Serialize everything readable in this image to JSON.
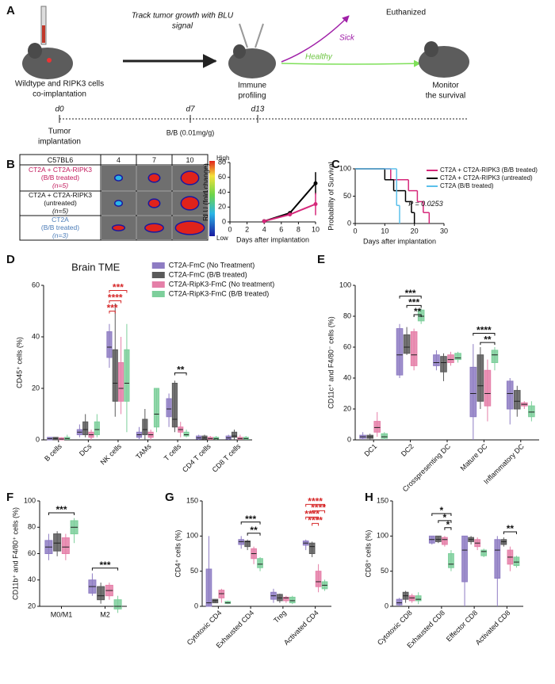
{
  "panel_labels": [
    "A",
    "B",
    "C",
    "D",
    "E",
    "F",
    "G",
    "H"
  ],
  "schematic": {
    "step1": "Wildtype and RIPK3 cells",
    "step1b": "co-implantation",
    "track": "Track tumor growth with BLU",
    "trackb": "signal",
    "profiling": "Immune",
    "profilingb": "profiling",
    "euthanized": "Euthanized",
    "sick": "Sick",
    "healthy": "Healthy",
    "monitor": "Monitor",
    "monitorb": "the survival"
  },
  "timeline": {
    "d0": "d0",
    "d7": "d7",
    "d13": "d13",
    "event0": "Tumor",
    "event0b": "implantation",
    "event7": "B/B (0.01mg/g)"
  },
  "imaging_table": {
    "header": [
      "C57BL6",
      "4",
      "7",
      "10"
    ],
    "rows": [
      [
        "CT2A + CT2A-RIPK3",
        "(B/B treated)",
        "(n=5)"
      ],
      [
        "CT2A + CT2A-RIPK3",
        "(untreated)",
        "(n=5)"
      ],
      [
        "CT2A",
        "(B/B treated)",
        "(n=3)"
      ]
    ],
    "row_colors": [
      "#c2185b",
      "#111111",
      "#4a7bb7"
    ],
    "scale_high": "High",
    "scale_low": "Low"
  },
  "chart_data": [
    {
      "type": "line",
      "xlabel": "Days after implantation",
      "ylabel": "RLU (fold change)",
      "xlim": [
        0,
        10
      ],
      "xticks": [
        0,
        2,
        4,
        6,
        8,
        10
      ],
      "ylim": [
        0,
        80
      ],
      "yticks": [
        0,
        20,
        40,
        60,
        80
      ],
      "series": [
        {
          "color": "#000000",
          "x": [
            4,
            7,
            10
          ],
          "values": [
            1,
            12,
            52
          ],
          "errors": [
            0,
            1,
            15
          ]
        },
        {
          "color": "#d6287a",
          "x": [
            4,
            7,
            10
          ],
          "values": [
            1,
            10,
            24
          ],
          "errors": [
            0,
            1,
            15
          ]
        }
      ]
    },
    {
      "type": "survival",
      "xlabel": "Days after implantation",
      "ylabel": "Probability of Survival",
      "xlim": [
        0,
        30
      ],
      "xticks": [
        0,
        10,
        20,
        30
      ],
      "ylim": [
        0,
        100
      ],
      "yticks": [
        0,
        50,
        100
      ],
      "legend": "upper right",
      "p_label": "P = 0.0253",
      "series": [
        {
          "name": "CT2A + CT2A-RIPK3 (B/B treated)",
          "color": "#d6287a",
          "x": [
            0,
            12,
            18,
            21,
            23,
            25
          ],
          "values": [
            100,
            80,
            60,
            40,
            20,
            0
          ]
        },
        {
          "name": "CT2A + CT2A-RIPK3 (untreated)",
          "color": "#000000",
          "x": [
            0,
            10,
            13,
            17,
            19,
            20
          ],
          "values": [
            100,
            80,
            60,
            40,
            20,
            0
          ]
        },
        {
          "name": "CT2A (B/B treated)",
          "color": "#5bc0eb",
          "x": [
            0,
            14,
            15
          ],
          "values": [
            100,
            33,
            0
          ]
        }
      ]
    },
    {
      "type": "box",
      "title": "Brain TME",
      "ylabel": "CD45⁺ cells (%)",
      "ylim": [
        0,
        60
      ],
      "yticks": [
        0,
        20,
        40,
        60
      ],
      "rotate_labels": true,
      "categories": [
        "B cells",
        "DCs",
        "NK cells",
        "TAMs",
        "T cells",
        "CD4 T cells",
        "CD8 T cells"
      ],
      "series": [
        {
          "name": "CT2A-FmC (No Treatment)",
          "color": "#8e7cc3",
          "values": [
            [
              0,
              0,
              0.5,
              1,
              1
            ],
            [
              1,
              2,
              3,
              4,
              6
            ],
            [
              28,
              32,
              36,
              42,
              45
            ],
            [
              0,
              1,
              2,
              3,
              5
            ],
            [
              5,
              9,
              12,
              16,
              18
            ],
            [
              0,
              0.3,
              0.8,
              1.5,
              2
            ],
            [
              0,
              0.3,
              0.8,
              1.5,
              2
            ]
          ]
        },
        {
          "name": "CT2A-FmC (B/B treated)",
          "color": "#5a5a5a",
          "values": [
            [
              0,
              0,
              0.5,
              1,
              1
            ],
            [
              1,
              2,
              4,
              7,
              10
            ],
            [
              9,
              15,
              22,
              35,
              53
            ],
            [
              0,
              2,
              4,
              8,
              12
            ],
            [
              3,
              5,
              8,
              22,
              23
            ],
            [
              0,
              0.3,
              0.8,
              1.5,
              2
            ],
            [
              0,
              1,
              1.5,
              3,
              4
            ]
          ]
        },
        {
          "name": "CT2A-RipK3-FmC (No treatment)",
          "color": "#e57fa8",
          "values": [
            [
              0,
              0,
              0.3,
              0.8,
              1
            ],
            [
              0,
              1,
              2,
              3,
              4
            ],
            [
              10,
              15,
              20,
              30,
              40
            ],
            [
              0,
              1,
              2,
              3,
              4
            ],
            [
              1,
              3,
              4,
              5,
              7
            ],
            [
              0,
              0.2,
              0.5,
              1,
              1.5
            ],
            [
              0,
              0.2,
              0.5,
              1,
              2
            ]
          ]
        },
        {
          "name": "CT2A-RipK3-FmC (B/B treated)",
          "color": "#7dcf9b",
          "values": [
            [
              0,
              0.2,
              0.5,
              1,
              2
            ],
            [
              1,
              2,
              4,
              7,
              10
            ],
            [
              3,
              15,
              22,
              35,
              45
            ],
            [
              3,
              5,
              10,
              20,
              20
            ],
            [
              1,
              1.5,
              2,
              3,
              4
            ],
            [
              0,
              0.3,
              0.5,
              1,
              1.5
            ],
            [
              0,
              0.2,
              0.5,
              1,
              1.5
            ]
          ]
        }
      ],
      "annotations": [
        {
          "text": "***",
          "color": "#d62728"
        },
        {
          "text": "****",
          "color": "#d62728"
        },
        {
          "text": "***",
          "color": "#d62728"
        },
        {
          "text": "**",
          "color": "#111111"
        }
      ]
    },
    {
      "type": "box",
      "ylabel": "CD11c⁺ and F4/80⁻ cells (%)",
      "ylim": [
        0,
        100
      ],
      "yticks": [
        0,
        20,
        40,
        60,
        80,
        100
      ],
      "rotate_labels": true,
      "categories": [
        "DC1",
        "DC2",
        "Crosspresenting DC",
        "Mature DC",
        "Inflammatory DC"
      ],
      "series": [
        {
          "color": "#8e7cc3",
          "values": [
            [
              0,
              1,
              2,
              3,
              5
            ],
            [
              40,
              42,
              55,
              72,
              75
            ],
            [
              45,
              48,
              50,
              55,
              58
            ],
            [
              0,
              15,
              30,
              47,
              62
            ],
            [
              10,
              20,
              30,
              38,
              40
            ]
          ]
        },
        {
          "color": "#5a5a5a",
          "values": [
            [
              0,
              1,
              2,
              3,
              4
            ],
            [
              55,
              56,
              60,
              68,
              73
            ],
            [
              38,
              44,
              50,
              54,
              56
            ],
            [
              20,
              25,
              35,
              55,
              60
            ],
            [
              15,
              20,
              25,
              32,
              35
            ]
          ]
        },
        {
          "color": "#e57fa8",
          "values": [
            [
              2,
              5,
              8,
              12,
              18
            ],
            [
              45,
              48,
              55,
              70,
              72
            ],
            [
              48,
              50,
              52,
              55,
              57
            ],
            [
              12,
              22,
              30,
              45,
              52
            ],
            [
              20,
              22,
              23,
              24,
              25
            ]
          ]
        },
        {
          "color": "#7dcf9b",
          "values": [
            [
              0,
              1,
              2,
              4,
              5
            ],
            [
              75,
              77,
              80,
              84,
              85
            ],
            [
              50,
              52,
              53,
              56,
              57
            ],
            [
              45,
              50,
              55,
              58,
              60
            ],
            [
              12,
              15,
              18,
              22,
              25
            ]
          ]
        }
      ],
      "annotations": [
        {
          "text": "***",
          "color": "#111111"
        },
        {
          "text": "***",
          "color": "#111111"
        },
        {
          "text": "**",
          "color": "#111111"
        },
        {
          "text": "****",
          "color": "#111111"
        },
        {
          "text": "**",
          "color": "#111111"
        }
      ]
    },
    {
      "type": "box",
      "ylabel": "CD11b⁺ and F4/80⁺ cells (%)",
      "ylim": [
        20,
        100
      ],
      "yticks": [
        20,
        40,
        60,
        80,
        100
      ],
      "rotate_labels": false,
      "categories": [
        "M0/M1",
        "M2"
      ],
      "series": [
        {
          "color": "#8e7cc3",
          "values": [
            [
              55,
              60,
              65,
              70,
              75
            ],
            [
              28,
              30,
              35,
              40,
              45
            ]
          ]
        },
        {
          "color": "#5a5a5a",
          "values": [
            [
              58,
              62,
              68,
              75,
              77
            ],
            [
              22,
              25,
              28,
              35,
              38
            ]
          ]
        },
        {
          "color": "#e57fa8",
          "values": [
            [
              55,
              60,
              65,
              72,
              75
            ],
            [
              25,
              28,
              32,
              36,
              38
            ]
          ]
        },
        {
          "color": "#7dcf9b",
          "values": [
            [
              68,
              75,
              80,
              85,
              87
            ],
            [
              15,
              18,
              20,
              25,
              28
            ]
          ]
        }
      ],
      "annotations": [
        {
          "text": "***",
          "color": "#111111"
        },
        {
          "text": "***",
          "color": "#111111"
        }
      ]
    },
    {
      "type": "box",
      "ylabel": "CD4⁺ cells (%)",
      "ylim": [
        0,
        150
      ],
      "yticks": [
        0,
        50,
        100,
        150
      ],
      "rotate_labels": true,
      "categories": [
        "Cytotoxic CD4",
        "Exhausted CD4",
        "Treg",
        "Activated CD4"
      ],
      "series": [
        {
          "color": "#8e7cc3",
          "values": [
            [
              0,
              0,
              5,
              53,
              100
            ],
            [
              82,
              88,
              92,
              95,
              100
            ],
            [
              5,
              10,
              15,
              20,
              25
            ],
            [
              80,
              87,
              90,
              93,
              95
            ]
          ]
        },
        {
          "color": "#5a5a5a",
          "values": [
            [
              5,
              5,
              8,
              10,
              10
            ],
            [
              80,
              85,
              92,
              93,
              95
            ],
            [
              5,
              8,
              12,
              17,
              18
            ],
            [
              70,
              75,
              85,
              90,
              92
            ]
          ]
        },
        {
          "color": "#e57fa8",
          "values": [
            [
              5,
              12,
              18,
              23,
              25
            ],
            [
              60,
              68,
              75,
              82,
              85
            ],
            [
              5,
              8,
              12,
              13,
              15
            ],
            [
              20,
              28,
              35,
              50,
              60
            ]
          ]
        },
        {
          "color": "#7dcf9b",
          "values": [
            [
              3,
              4,
              5,
              7,
              8
            ],
            [
              50,
              55,
              60,
              68,
              70
            ],
            [
              3,
              5,
              8,
              13,
              15
            ],
            [
              22,
              25,
              30,
              35,
              38
            ]
          ]
        }
      ],
      "annotations": [
        {
          "text": "***",
          "color": "#111111"
        },
        {
          "text": "**",
          "color": "#111111"
        },
        {
          "text": "****",
          "color": "#d62728"
        },
        {
          "text": "****",
          "color": "#d62728"
        },
        {
          "text": "****",
          "color": "#d62728"
        },
        {
          "text": "****",
          "color": "#d62728"
        }
      ]
    },
    {
      "type": "box",
      "ylabel": "CD8⁺ cells (%)",
      "ylim": [
        0,
        150
      ],
      "yticks": [
        0,
        50,
        100,
        150
      ],
      "rotate_labels": true,
      "categories": [
        "Cytotoxic CD8",
        "Exhausted CD8",
        "Effector CD8",
        "Activated CD8"
      ],
      "series": [
        {
          "color": "#8e7cc3",
          "values": [
            [
              0,
              2,
              5,
              10,
              12
            ],
            [
              88,
              90,
              95,
              100,
              100
            ],
            [
              0,
              35,
              80,
              100,
              100
            ],
            [
              0,
              40,
              80,
              95,
              100
            ]
          ]
        },
        {
          "color": "#5a5a5a",
          "values": [
            [
              5,
              10,
              15,
              20,
              22
            ],
            [
              90,
              92,
              95,
              100,
              100
            ],
            [
              88,
              92,
              95,
              98,
              100
            ],
            [
              85,
              88,
              92,
              95,
              98
            ]
          ]
        },
        {
          "color": "#e57fa8",
          "values": [
            [
              5,
              8,
              12,
              15,
              18
            ],
            [
              85,
              88,
              95,
              98,
              100
            ],
            [
              80,
              85,
              90,
              95,
              98
            ],
            [
              50,
              60,
              70,
              80,
              85
            ]
          ]
        },
        {
          "color": "#7dcf9b",
          "values": [
            [
              3,
              8,
              10,
              15,
              20
            ],
            [
              50,
              55,
              60,
              75,
              80
            ],
            [
              70,
              72,
              78,
              80,
              82
            ],
            [
              55,
              58,
              63,
              70,
              72
            ]
          ]
        }
      ],
      "annotations": [
        {
          "text": "*",
          "color": "#111111"
        },
        {
          "text": "*",
          "color": "#111111"
        },
        {
          "text": "*",
          "color": "#111111"
        },
        {
          "text": "**",
          "color": "#111111"
        }
      ]
    }
  ]
}
